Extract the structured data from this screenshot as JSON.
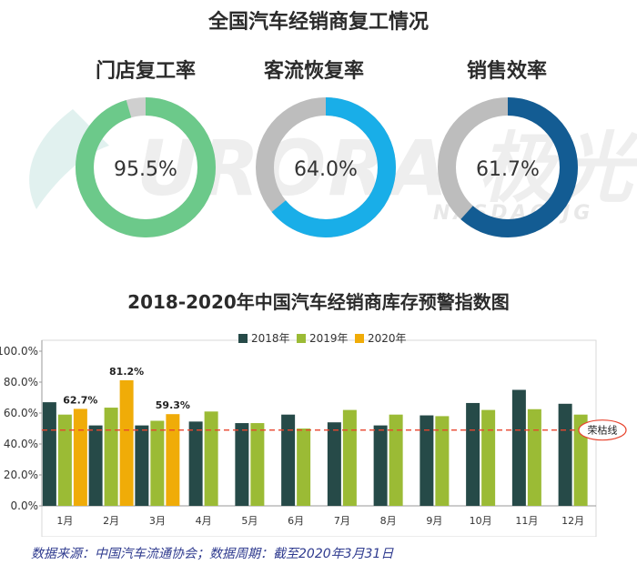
{
  "header": {
    "title": "全国汽车经销商复工情况"
  },
  "donuts": [
    {
      "label": "门店复工率",
      "value_text": "95.5%",
      "value": 95.5,
      "color": "#6cc98a",
      "track": "#cfcfcf"
    },
    {
      "label": "客流恢复率",
      "value_text": "64.0%",
      "value": 64.0,
      "color": "#19aee8",
      "track": "#bdbdbd"
    },
    {
      "label": "销售效率",
      "value_text": "61.7%",
      "value": 61.7,
      "color": "#135c93",
      "track": "#bdbdbd"
    }
  ],
  "watermark": {
    "brand": "URORA",
    "brand_cn": "极光",
    "sub": "NASDAQ:JG"
  },
  "chart_data": {
    "type": "bar",
    "title": "2018-2020年中国汽车经销商库存预警指数图",
    "categories": [
      "1月",
      "2月",
      "3月",
      "4月",
      "5月",
      "6月",
      "7月",
      "8月",
      "9月",
      "10月",
      "11月",
      "12月"
    ],
    "series": [
      {
        "name": "2018年",
        "color": "#264a48",
        "values": [
          67.0,
          52.0,
          52.0,
          54.5,
          53.5,
          59.0,
          54.0,
          52.0,
          58.5,
          66.5,
          75.0,
          66.0
        ]
      },
      {
        "name": "2019年",
        "color": "#9bbb35",
        "values": [
          59.0,
          63.5,
          55.0,
          61.0,
          53.5,
          50.0,
          62.0,
          59.0,
          58.0,
          62.0,
          62.5,
          59.0
        ]
      },
      {
        "name": "2020年",
        "color": "#f0ac08",
        "values": [
          62.7,
          81.2,
          59.3,
          null,
          null,
          null,
          null,
          null,
          null,
          null,
          null,
          null
        ]
      }
    ],
    "data_labels": [
      {
        "category": "1月",
        "series": "2020年",
        "text": "62.7%"
      },
      {
        "category": "2月",
        "series": "2020年",
        "text": "81.2%"
      },
      {
        "category": "3月",
        "series": "2020年",
        "text": "59.3%"
      }
    ],
    "ylim": [
      0,
      100
    ],
    "yticks": [
      0,
      20,
      40,
      60,
      80,
      100
    ],
    "ytick_labels": [
      "0.0%",
      "20.0%",
      "40.0%",
      "60.0%",
      "80.0%",
      "100.0%"
    ],
    "reference_line": {
      "value": 49.0,
      "label": "荣枯线",
      "color": "#e8452f"
    },
    "legend_position": "top-center",
    "grid": false
  },
  "footer": {
    "source": "数据来源：中国汽车流通协会；数据周期：截至2020年3月31日"
  }
}
